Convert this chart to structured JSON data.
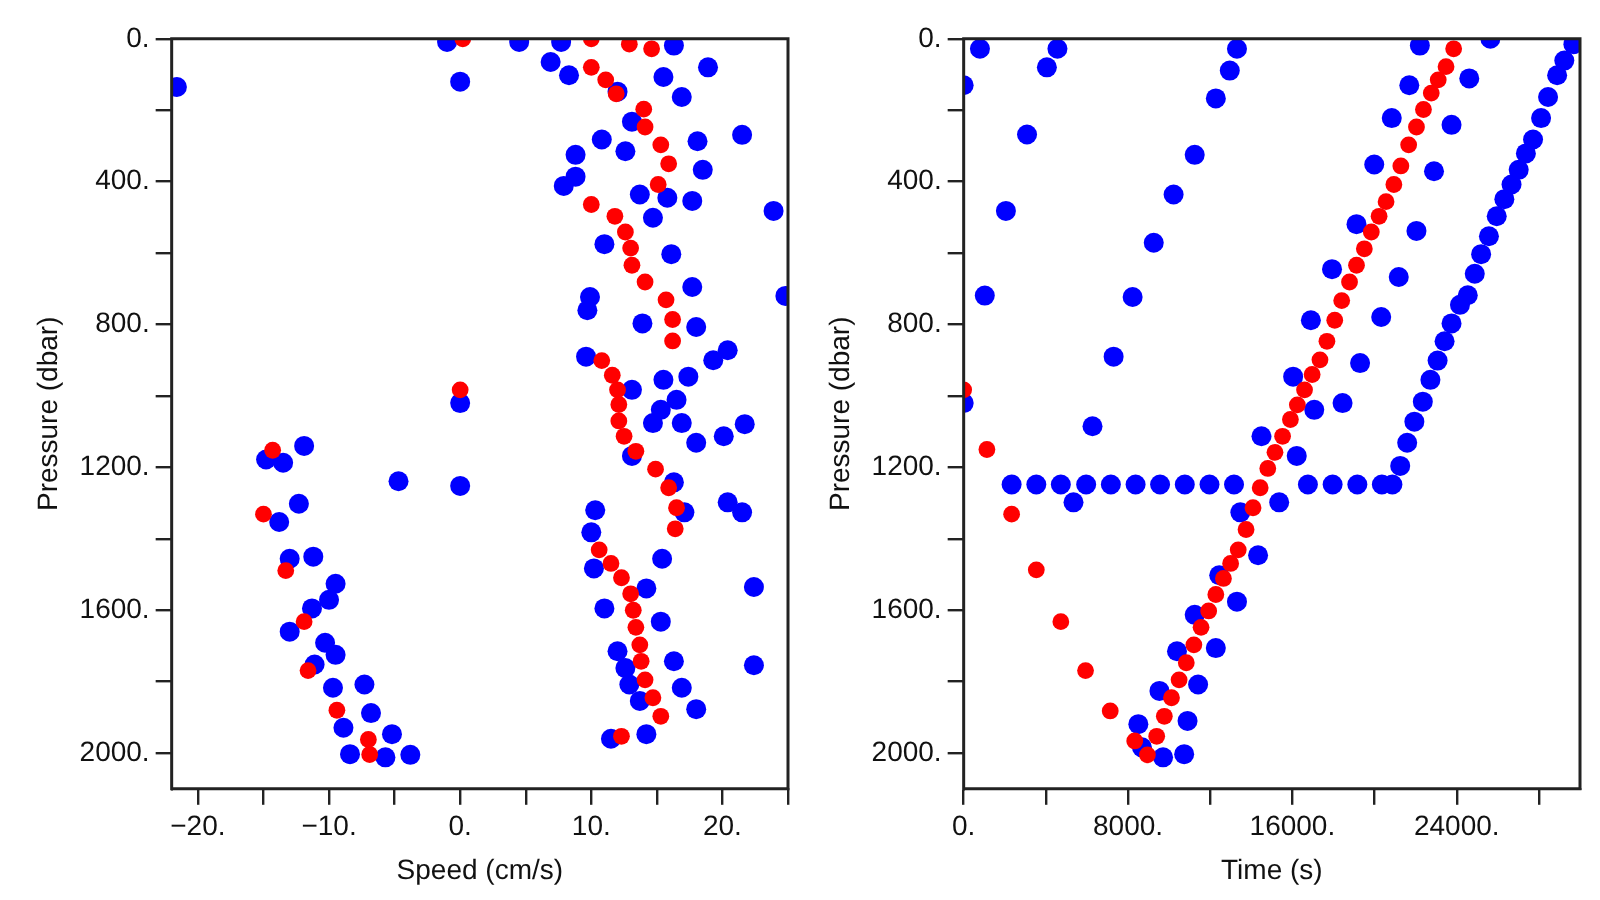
{
  "chart_data": [
    {
      "type": "scatter",
      "xlabel": "Speed (cm/s)",
      "ylabel": "Pressure (dbar)",
      "xlim": [
        -22,
        25
      ],
      "ylim": [
        2100,
        0
      ],
      "xticks": [
        {
          "value": -20,
          "label": "−20."
        },
        {
          "value": -15,
          "label": null
        },
        {
          "value": -10,
          "label": "−10."
        },
        {
          "value": -5,
          "label": null
        },
        {
          "value": 0,
          "label": "0."
        },
        {
          "value": 5,
          "label": null
        },
        {
          "value": 10,
          "label": "10."
        },
        {
          "value": 15,
          "label": null
        },
        {
          "value": 20,
          "label": "20."
        },
        {
          "value": 25,
          "label": null
        }
      ],
      "yticks": [
        {
          "value": 0,
          "label": "0."
        },
        {
          "value": 200,
          "label": null
        },
        {
          "value": 400,
          "label": "400."
        },
        {
          "value": 600,
          "label": null
        },
        {
          "value": 800,
          "label": "800."
        },
        {
          "value": 1000,
          "label": null
        },
        {
          "value": 1200,
          "label": "1200."
        },
        {
          "value": 1400,
          "label": null
        },
        {
          "value": 1600,
          "label": "1600."
        },
        {
          "value": 1800,
          "label": null
        },
        {
          "value": 2000,
          "label": "2000."
        }
      ],
      "grid": false,
      "legend": false,
      "marker": "circle",
      "series": [
        {
          "color": "#0000ff",
          "x": [
            -21.6,
            0,
            18.9,
            21.5,
            23.9,
            24.8,
            -1,
            4.5,
            7.7,
            6.9,
            8.3,
            16.3,
            15.5,
            16.9,
            18.1,
            18.5,
            17.7,
            15.8,
            13.1,
            12,
            10.8,
            8.8,
            7.9,
            8.8,
            12.6,
            13.7,
            14.7,
            16.1,
            17.7,
            18,
            13.9,
            11,
            9.9,
            20.4,
            19.3,
            17.4,
            16.5,
            9.7,
            9.6,
            13.1,
            15.5,
            15.3,
            14.7,
            16.9,
            18,
            13.1,
            16.3,
            17.1,
            15.4,
            21.7,
            20.1,
            20.4,
            21.5,
            22.4,
            22.4,
            10.3,
            10,
            10.2,
            11,
            12,
            12.6,
            12.9,
            13.7,
            11.5,
            14.2,
            18,
            16.9,
            16.3,
            15.3,
            14.2,
            0,
            0,
            -4.7,
            -14.8,
            -11.9,
            -13.5,
            -12.3,
            -13.8,
            -13,
            -11.2,
            -9.5,
            -10,
            -13,
            -11.3,
            -10.3,
            -9.5,
            -11.1,
            -9.7,
            -7.3,
            -8.9,
            -6.8,
            -5.2,
            -3.8,
            -8.4,
            -5.7
          ],
          "values": [
            135,
            120,
            80,
            269,
            482,
            720,
            9,
            9,
            9,
            65,
            102,
            19,
            107,
            163,
            287,
            367,
            454,
            445,
            232,
            148,
            282,
            325,
            412,
            386,
            315,
            436,
            501,
            603,
            695,
            807,
            797,
            575,
            723,
            872,
            900,
            946,
            1011,
            760,
            890,
            983,
            955,
            1039,
            1076,
            1076,
            1131,
            1168,
            1242,
            1326,
            1456,
            1079,
            1113,
            1298,
            1326,
            1535,
            1754,
            1320,
            1382,
            1483,
            1595,
            1715,
            1762,
            1808,
            1854,
            1960,
            1947,
            1877,
            1817,
            1743,
            1632,
            1539,
            1020,
            1252,
            1239,
            1178,
            1140,
            1187,
            1302,
            1353,
            1456,
            1450,
            1526,
            1571,
            1660,
            1595,
            1691,
            1725,
            1752,
            1817,
            1808,
            1929,
            1888,
            1947,
            2005,
            2003,
            2012
          ]
        },
        {
          "color": "#ff0000",
          "x": [
            0.2,
            10,
            12.9,
            14.6,
            10,
            11.1,
            11.9,
            14,
            14.1,
            15.3,
            15.9,
            15.1,
            10,
            11.8,
            12.6,
            13,
            13.1,
            14.1,
            15.7,
            16.2,
            16.2,
            10.8,
            11.6,
            12,
            12.1,
            0,
            12.1,
            12.5,
            13.4,
            14.9,
            15.9,
            16.5,
            16.4,
            10.6,
            11.5,
            12.3,
            13,
            13.2,
            13.4,
            13.7,
            13.8,
            14.1,
            14.7,
            15.3,
            12.3,
            -14.3,
            -15,
            -13.3,
            -11.9,
            -11.6,
            -9.4,
            -7,
            -6.9
          ],
          "values": [
            0,
            0,
            15,
            28,
            80,
            115,
            154,
            197,
            247,
            297,
            350,
            408,
            464,
            497,
            541,
            586,
            634,
            681,
            731,
            786,
            846,
            901,
            942,
            983,
            1024,
            983,
            1070,
            1113,
            1155,
            1205,
            1257,
            1313,
            1372,
            1431,
            1469,
            1509,
            1554,
            1600,
            1648,
            1697,
            1743,
            1795,
            1845,
            1897,
            1953,
            1152,
            1331,
            1489,
            1632,
            1769,
            1880,
            1962,
            2004
          ]
        }
      ]
    },
    {
      "type": "scatter",
      "xlabel": "Time (s)",
      "ylabel": "Pressure (dbar)",
      "xlim": [
        0,
        30000
      ],
      "ylim": [
        2100,
        0
      ],
      "xticks": [
        {
          "value": 0,
          "label": "0."
        },
        {
          "value": 4000,
          "label": null
        },
        {
          "value": 8000,
          "label": "8000."
        },
        {
          "value": 12000,
          "label": null
        },
        {
          "value": 16000,
          "label": "16000."
        },
        {
          "value": 20000,
          "label": null
        },
        {
          "value": 24000,
          "label": "24000."
        },
        {
          "value": 28000,
          "label": null
        }
      ],
      "yticks": [
        {
          "value": 0,
          "label": "0."
        },
        {
          "value": 200,
          "label": null
        },
        {
          "value": 400,
          "label": "400."
        },
        {
          "value": 600,
          "label": null
        },
        {
          "value": 800,
          "label": "800."
        },
        {
          "value": 1000,
          "label": null
        },
        {
          "value": 1200,
          "label": "1200."
        },
        {
          "value": 1400,
          "label": null
        },
        {
          "value": 1600,
          "label": "1600."
        },
        {
          "value": 1800,
          "label": null
        },
        {
          "value": 2000,
          "label": "2000."
        }
      ],
      "grid": false,
      "legend": false,
      "marker": "circle",
      "series": [
        {
          "color": "#0000ff",
          "x": [
            22205,
            21691,
            20838,
            19985,
            19121,
            17929,
            16900,
            16037,
            14495,
            13467,
            12439,
            11246,
            10383,
            9530,
            8502,
            8677,
            25638,
            24610,
            23747,
            22894,
            22040,
            21177,
            20324,
            19296,
            18442,
            17065,
            16212,
            15359,
            14331,
            13303,
            12274,
            11411,
            10897,
            10733,
            9705,
            2334,
            3536,
            4729,
            5962,
            7165,
            8368,
            9560,
            10763,
            11966,
            13159,
            16756,
            17959,
            19162,
            20355,
            20869,
            5346,
            21249,
            21588,
            21938,
            22349,
            22719,
            23068,
            23408,
            23747,
            24158,
            24538,
            24878,
            25187,
            25567,
            25947,
            26318,
            26667,
            27016,
            27366,
            27715,
            28106,
            28445,
            28887,
            29236,
            29678,
            0,
            792,
            1028,
            2056,
            3084,
            4050,
            4564,
            7299,
            8224,
            9252,
            10219,
            11246,
            12274,
            12953,
            13303,
            6271,
            0
          ],
          "values": [
            19,
            130,
            222,
            352,
            519,
            645,
            788,
            946,
            1113,
            1326,
            1502,
            1613,
            1715,
            1826,
            1919,
            1984,
            0,
            111,
            241,
            371,
            538,
            667,
            779,
            908,
            1020,
            1039,
            1168,
            1298,
            1446,
            1576,
            1706,
            1808,
            1910,
            2003,
            2012,
            1248,
            1248,
            1248,
            1248,
            1248,
            1248,
            1248,
            1248,
            1248,
            1248,
            1248,
            1248,
            1248,
            1248,
            1248,
            1298,
            1196,
            1131,
            1072,
            1016,
            955,
            901,
            847,
            797,
            745,
            718,
            658,
            603,
            553,
            497,
            449,
            408,
            367,
            321,
            282,
            222,
            163,
            102,
            61,
            15,
            130,
            28,
            719,
            482,
            268,
            80,
            28,
            890,
            723,
            571,
            436,
            325,
            167,
            89,
            28,
            1085,
            1020
          ]
        },
        {
          "color": "#ff0000",
          "x": [
            0,
            1131,
            2334,
            3536,
            4729,
            5932,
            7134,
            8327,
            8944,
            9396,
            9767,
            10116,
            10486,
            10835,
            11205,
            11555,
            11925,
            12274,
            12644,
            12994,
            13364,
            13745,
            14084,
            14433,
            14803,
            15153,
            15523,
            15904,
            16242,
            16592,
            16962,
            17343,
            17682,
            18062,
            18401,
            18782,
            19121,
            19502,
            19841,
            20221,
            20560,
            20940,
            21280,
            21660,
            22040,
            22380,
            22760,
            23099,
            23479,
            23850
          ],
          "values": [
            983,
            1150,
            1331,
            1487,
            1632,
            1769,
            1882,
            1966,
            2005,
            1953,
            1897,
            1845,
            1795,
            1747,
            1697,
            1648,
            1602,
            1556,
            1511,
            1469,
            1431,
            1374,
            1313,
            1257,
            1203,
            1158,
            1113,
            1066,
            1025,
            983,
            940,
            899,
            847,
            788,
            733,
            681,
            634,
            588,
            541,
            497,
            456,
            408,
            356,
            297,
            247,
            198,
            152,
            115,
            78,
            28
          ]
        }
      ]
    }
  ]
}
